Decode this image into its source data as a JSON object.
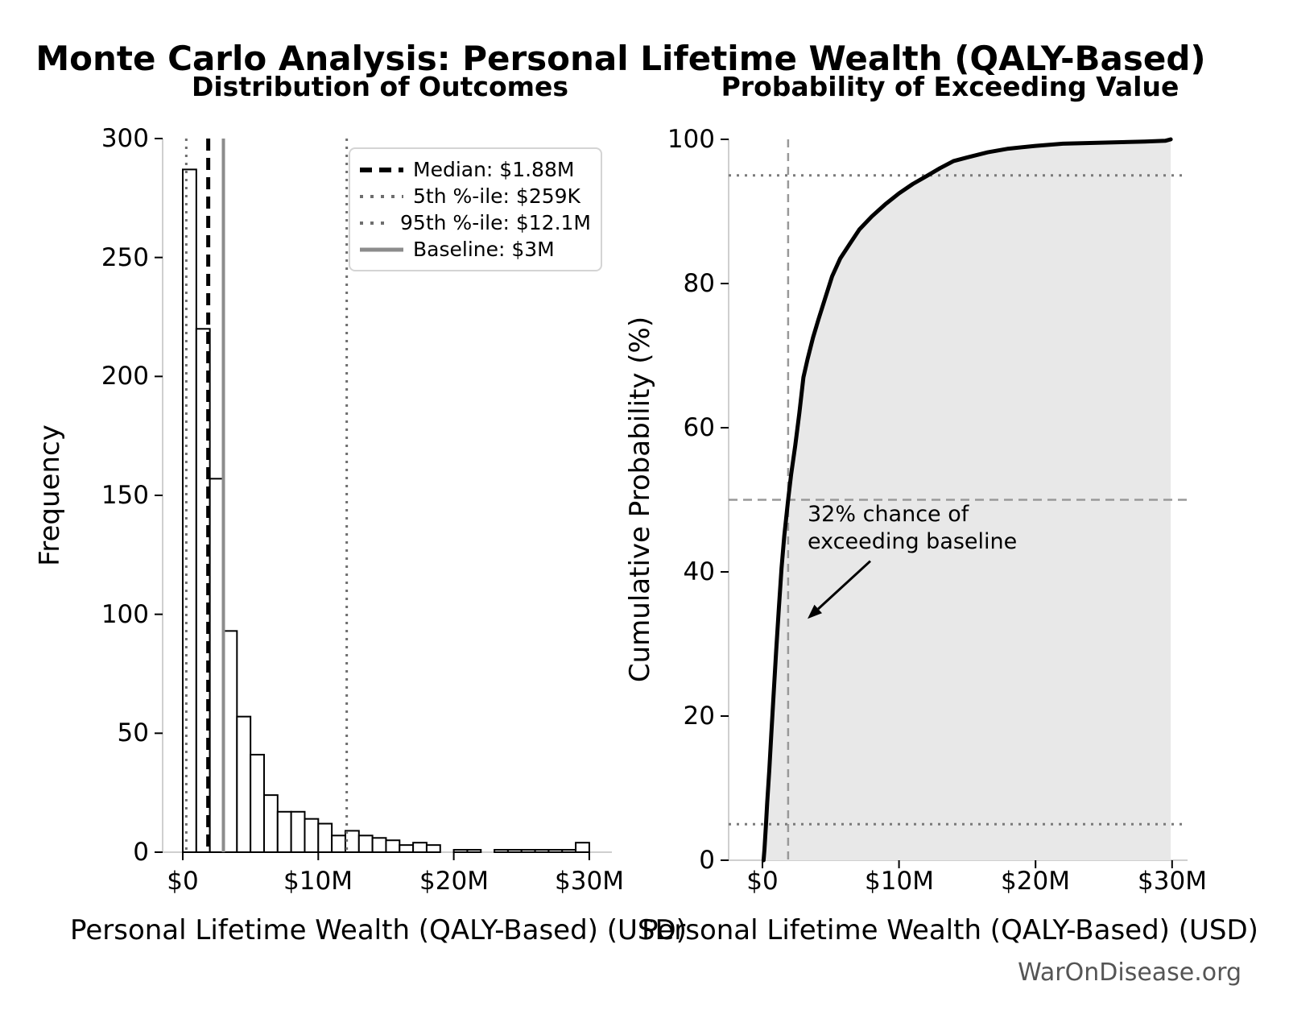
{
  "header": {
    "title": "Monte Carlo Analysis: Personal Lifetime Wealth (QALY-Based)"
  },
  "footer": {
    "watermark": "WarOnDisease.org"
  },
  "chart_data": [
    {
      "id": "outcome-histogram",
      "type": "bar",
      "title": "Distribution of Outcomes",
      "xlabel": "Personal Lifetime Wealth (QALY-Based) (USD)",
      "ylabel": "Frequency",
      "xtick_labels": [
        "$0",
        "$10M",
        "$20M",
        "$30M"
      ],
      "xtick_values_musd": [
        0,
        10,
        20,
        30
      ],
      "ytick_labels": [
        "0",
        "50",
        "100",
        "150",
        "200",
        "250",
        "300"
      ],
      "ytick_values": [
        0,
        50,
        100,
        150,
        200,
        250,
        300
      ],
      "xlim_musd": [
        -1.5,
        31.7
      ],
      "ylim": [
        0,
        300
      ],
      "grid": false,
      "bin_start_musd": 0,
      "bin_width_musd": 1,
      "frequencies": [
        287,
        220,
        157,
        93,
        57,
        41,
        24,
        17,
        17,
        14,
        12,
        7,
        9,
        7,
        6,
        5,
        3,
        4,
        3,
        0,
        1,
        1,
        0,
        1,
        1,
        1,
        1,
        1,
        1,
        4
      ],
      "bar_fill": "#ffffff",
      "bar_edge": "#000000",
      "reference_lines": [
        {
          "label": "Median: $1.88M",
          "value_musd": 1.88,
          "style": "dashed",
          "color": "#000000"
        },
        {
          "label": "5th %-ile: $259K",
          "value_musd": 0.259,
          "style": "dotted",
          "color": "#6e6e6e"
        },
        {
          "label": "95th %-ile: $12.1M",
          "value_musd": 12.1,
          "style": "dotted",
          "color": "#6e6e6e"
        },
        {
          "label": "Baseline: $3M",
          "value_musd": 3.0,
          "style": "solid",
          "color": "#8c8c8c"
        }
      ],
      "legend_position": "upper right"
    },
    {
      "id": "exceedance-cdf",
      "type": "line",
      "title": "Probability of Exceeding Value",
      "xlabel": "Personal Lifetime Wealth (QALY-Based) (USD)",
      "ylabel": "Cumulative Probability (%)",
      "xtick_labels": [
        "$0",
        "$10M",
        "$20M",
        "$30M"
      ],
      "xtick_values_musd": [
        0,
        10,
        20,
        30
      ],
      "ytick_labels": [
        "0",
        "20",
        "40",
        "60",
        "80",
        "100"
      ],
      "ytick_values": [
        0,
        20,
        40,
        60,
        80,
        100
      ],
      "xlim_musd": [
        -1.5,
        31.1
      ],
      "ylim": [
        0,
        100
      ],
      "grid": false,
      "line_color": "#000000",
      "fill_color": "#e8e8e8",
      "points_musd_pct": [
        [
          0.08,
          0
        ],
        [
          0.15,
          1.5
        ],
        [
          0.26,
          5
        ],
        [
          0.35,
          8
        ],
        [
          0.5,
          12.5
        ],
        [
          0.65,
          17.5
        ],
        [
          0.8,
          22.5
        ],
        [
          1.0,
          29
        ],
        [
          1.2,
          35
        ],
        [
          1.4,
          40.5
        ],
        [
          1.6,
          45
        ],
        [
          1.88,
          50
        ],
        [
          2.1,
          53.5
        ],
        [
          2.4,
          57.5
        ],
        [
          2.7,
          62
        ],
        [
          3.0,
          67
        ],
        [
          3.3,
          69.5
        ],
        [
          3.7,
          72.5
        ],
        [
          4.1,
          75
        ],
        [
          4.6,
          78
        ],
        [
          5.1,
          81
        ],
        [
          5.7,
          83.5
        ],
        [
          6.4,
          85.5
        ],
        [
          7.1,
          87.5
        ],
        [
          8.0,
          89.3
        ],
        [
          9.0,
          91
        ],
        [
          10.0,
          92.5
        ],
        [
          11.0,
          93.8
        ],
        [
          12.1,
          95
        ],
        [
          13.0,
          96
        ],
        [
          14.0,
          97
        ],
        [
          15.0,
          97.5
        ],
        [
          16.5,
          98.2
        ],
        [
          18.0,
          98.7
        ],
        [
          20.0,
          99.1
        ],
        [
          22.0,
          99.4
        ],
        [
          24.0,
          99.5
        ],
        [
          26.0,
          99.6
        ],
        [
          28.0,
          99.7
        ],
        [
          29.5,
          99.8
        ],
        [
          29.9,
          100
        ]
      ],
      "hlines": [
        {
          "value_pct": 95,
          "style": "dotted",
          "color": "#7a7a7a"
        },
        {
          "value_pct": 50,
          "style": "dashed",
          "color": "#999999"
        },
        {
          "value_pct": 5,
          "style": "dotted",
          "color": "#7a7a7a"
        }
      ],
      "vline_musd": {
        "value": 1.88,
        "style": "dashed",
        "color": "#999999"
      },
      "annotation": {
        "line1": "32% chance of",
        "line2": "exceeding baseline",
        "arrow_from_musd_pct": [
          7.9,
          41.5
        ],
        "arrow_to_musd_pct": [
          3.3,
          33.5
        ]
      }
    }
  ]
}
